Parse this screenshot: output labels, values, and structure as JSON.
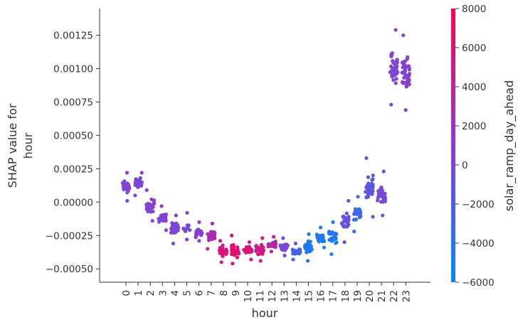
{
  "chart_data": {
    "type": "scatter",
    "title": "",
    "xlabel": "hour",
    "ylabel": [
      "SHAP value for",
      "hour"
    ],
    "x_categories": [
      "0",
      "1",
      "2",
      "3",
      "4",
      "5",
      "6",
      "7",
      "8",
      "9",
      "10",
      "11",
      "12",
      "13",
      "14",
      "15",
      "16",
      "17",
      "18",
      "19",
      "20",
      "21",
      "22",
      "23"
    ],
    "ylim": [
      -0.0006,
      0.00145
    ],
    "yticks": [
      -0.0005,
      -0.00025,
      0.0,
      0.00025,
      0.0005,
      0.00075,
      0.001,
      0.00125
    ],
    "ytick_labels": [
      "−0.00050",
      "−0.00025",
      "0.00000",
      "0.00025",
      "0.00050",
      "0.00075",
      "0.00100",
      "0.00125"
    ],
    "grid": false,
    "colorbar": {
      "label": "solar_ramp_day_ahead",
      "range": [
        -6000,
        8000
      ],
      "ticks": [
        8000,
        6000,
        4000,
        2000,
        0,
        -2000,
        -4000,
        -6000
      ],
      "tick_labels": [
        "8000",
        "6000",
        "4000",
        "2000",
        "0",
        "−2000",
        "−4000",
        "−6000"
      ],
      "color_low": "#008bfb",
      "color_high": "#ff0052",
      "color_mid": "#8f3bd1"
    },
    "point_groups": [
      {
        "hour": 0,
        "shap_min": 1e-05,
        "shap_max": 0.00022,
        "shap_center": 0.00012,
        "feature_value": 200,
        "n": 30
      },
      {
        "hour": 1,
        "shap_min": 5e-05,
        "shap_max": 0.00022,
        "shap_center": 0.00015,
        "feature_value": 200,
        "n": 30
      },
      {
        "hour": 2,
        "shap_min": -0.00014,
        "shap_max": 9e-05,
        "shap_center": -3e-05,
        "feature_value": 300,
        "n": 30
      },
      {
        "hour": 3,
        "shap_min": -0.00021,
        "shap_max": -3e-05,
        "shap_center": -0.00012,
        "feature_value": 300,
        "n": 30
      },
      {
        "hour": 4,
        "shap_min": -0.00031,
        "shap_max": -0.0001,
        "shap_center": -0.00021,
        "feature_value": 300,
        "n": 30
      },
      {
        "hour": 5,
        "shap_min": -0.00028,
        "shap_max": -8e-05,
        "shap_center": -0.00022,
        "feature_value": 0,
        "n": 12
      },
      {
        "hour": 6,
        "shap_min": -0.00029,
        "shap_max": -0.00015,
        "shap_center": -0.00023,
        "feature_value": 800,
        "n": 25
      },
      {
        "hour": 7,
        "shap_min": -0.00035,
        "shap_max": -0.00016,
        "shap_center": -0.00025,
        "feature_value": 2500,
        "n": 25
      },
      {
        "hour": 8,
        "shap_min": -0.00045,
        "shap_max": -0.00029,
        "shap_center": -0.00036,
        "feature_value": 5500,
        "n": 30
      },
      {
        "hour": 9,
        "shap_min": -0.00046,
        "shap_max": -0.00025,
        "shap_center": -0.00037,
        "feature_value": 6500,
        "n": 30
      },
      {
        "hour": 10,
        "shap_min": -0.00043,
        "shap_max": -0.0003,
        "shap_center": -0.00035,
        "feature_value": 5500,
        "n": 30
      },
      {
        "hour": 11,
        "shap_min": -0.00044,
        "shap_max": -0.00027,
        "shap_center": -0.00035,
        "feature_value": 5000,
        "n": 30
      },
      {
        "hour": 12,
        "shap_min": -0.00037,
        "shap_max": -0.00026,
        "shap_center": -0.00032,
        "feature_value": 3500,
        "n": 30
      },
      {
        "hour": 13,
        "shap_min": -0.0004,
        "shap_max": -0.00027,
        "shap_center": -0.00034,
        "feature_value": 0,
        "n": 25
      },
      {
        "hour": 14,
        "shap_min": -0.00043,
        "shap_max": -0.00031,
        "shap_center": -0.00037,
        "feature_value": -2500,
        "n": 25
      },
      {
        "hour": 15,
        "shap_min": -0.00044,
        "shap_max": -0.00024,
        "shap_center": -0.00033,
        "feature_value": -4500,
        "n": 30
      },
      {
        "hour": 16,
        "shap_min": -0.00034,
        "shap_max": -0.00019,
        "shap_center": -0.00028,
        "feature_value": -4500,
        "n": 25
      },
      {
        "hour": 17,
        "shap_min": -0.00039,
        "shap_max": -0.00015,
        "shap_center": -0.00025,
        "feature_value": -4000,
        "n": 25
      },
      {
        "hour": 18,
        "shap_min": -0.0003,
        "shap_max": 1e-05,
        "shap_center": -0.00017,
        "feature_value": -1000,
        "n": 25
      },
      {
        "hour": 19,
        "shap_min": -0.00022,
        "shap_max": 4e-05,
        "shap_center": -0.0001,
        "feature_value": -3000,
        "n": 25
      },
      {
        "hour": 20,
        "shap_min": -0.00011,
        "shap_max": 0.00033,
        "shap_center": 7e-05,
        "feature_value": -1500,
        "n": 40
      },
      {
        "hour": 21,
        "shap_min": -0.0001,
        "shap_max": 0.00023,
        "shap_center": 4e-05,
        "feature_value": 0,
        "n": 35
      },
      {
        "hour": 22,
        "shap_min": 0.00073,
        "shap_max": 0.00129,
        "shap_center": 0.00102,
        "feature_value": 500,
        "n": 45
      },
      {
        "hour": 23,
        "shap_min": 0.00069,
        "shap_max": 0.00125,
        "shap_center": 0.00096,
        "feature_value": 500,
        "n": 45
      }
    ]
  }
}
